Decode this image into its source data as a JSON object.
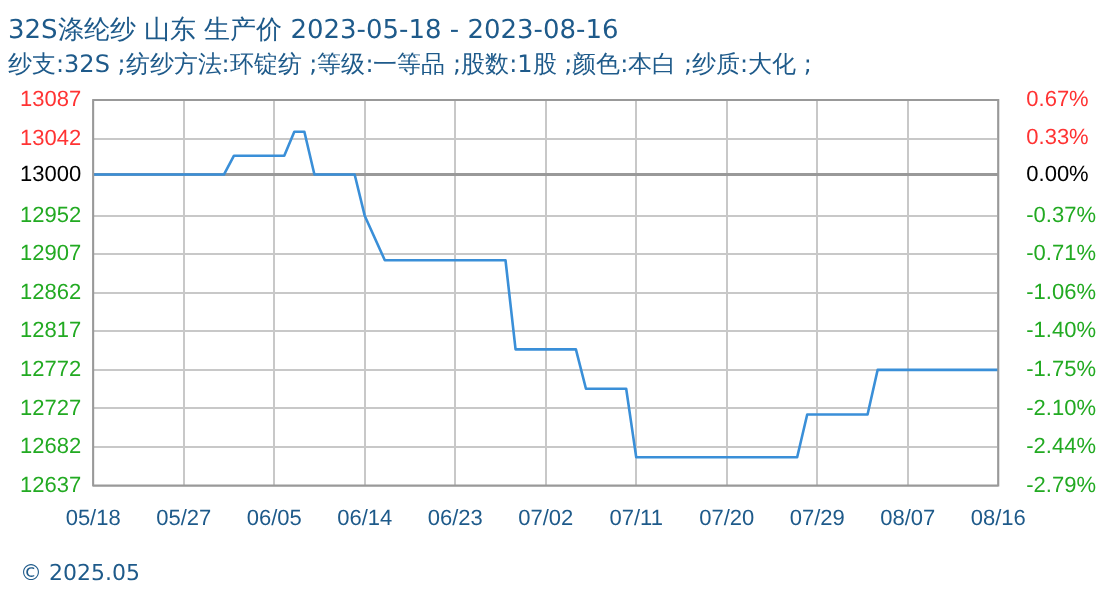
{
  "chart_data": {
    "type": "line",
    "title": "32S涤纶纱 山东 生产价 2023-05-18 - 2023-08-16",
    "subtitle": "纱支:32S ;纺纱方法:环锭纺 ;等级:一等品 ;股数:1股 ;颜色:本白 ;纱质:大化 ;",
    "x": [
      "2023-05-18",
      "2023-05-31",
      "2023-06-01",
      "2023-06-06",
      "2023-06-07",
      "2023-06-08",
      "2023-06-09",
      "2023-06-13",
      "2023-06-14",
      "2023-06-16",
      "2023-06-28",
      "2023-06-29",
      "2023-07-05",
      "2023-07-06",
      "2023-07-10",
      "2023-07-11",
      "2023-07-27",
      "2023-07-28",
      "2023-08-03",
      "2023-08-04",
      "2023-08-16"
    ],
    "series": [
      {
        "color": "#3a8fd8",
        "values": [
          13000,
          13000,
          13022,
          13022,
          13050,
          13050,
          13000,
          13000,
          12952,
          12900,
          12900,
          12796,
          12796,
          12750,
          12750,
          12670,
          12670,
          12720,
          12720,
          12772,
          12772
        ]
      }
    ],
    "xlim": [
      "2023-05-18",
      "2023-08-16"
    ],
    "xticks": [
      {
        "value": "2023-05-18",
        "label": "05/18"
      },
      {
        "value": "2023-05-27",
        "label": "05/27"
      },
      {
        "value": "2023-06-05",
        "label": "06/05"
      },
      {
        "value": "2023-06-14",
        "label": "06/14"
      },
      {
        "value": "2023-06-23",
        "label": "06/23"
      },
      {
        "value": "2023-07-02",
        "label": "07/02"
      },
      {
        "value": "2023-07-11",
        "label": "07/11"
      },
      {
        "value": "2023-07-20",
        "label": "07/20"
      },
      {
        "value": "2023-07-29",
        "label": "07/29"
      },
      {
        "value": "2023-08-07",
        "label": "08/07"
      },
      {
        "value": "2023-08-16",
        "label": "08/16"
      }
    ],
    "ylim": [
      12637,
      13087
    ],
    "yticks": [
      12637,
      12682,
      12727,
      12772,
      12817,
      12862,
      12907,
      12952,
      13000,
      13042,
      13087
    ],
    "y2lim": [
      -2.79,
      0.67
    ],
    "y2ticks": [
      {
        "value": -2.79,
        "label": "-2.79%"
      },
      {
        "value": -2.44,
        "label": "-2.44%"
      },
      {
        "value": -2.1,
        "label": "-2.10%"
      },
      {
        "value": -1.75,
        "label": "-1.75%"
      },
      {
        "value": -1.4,
        "label": "-1.40%"
      },
      {
        "value": -1.06,
        "label": "-1.06%"
      },
      {
        "value": -0.71,
        "label": "-0.71%"
      },
      {
        "value": -0.37,
        "label": "-0.37%"
      },
      {
        "value": 0,
        "label": "0.00%"
      },
      {
        "value": 0.33,
        "label": "0.33%"
      },
      {
        "value": 0.67,
        "label": "0.67%"
      }
    ],
    "ref_lines": [
      {
        "axis": "y",
        "value": 13000,
        "color": "#999999"
      }
    ],
    "annotations": [
      "© 2025.05"
    ],
    "grid": true,
    "legend": false,
    "marker": "none",
    "line_style": "solid"
  }
}
